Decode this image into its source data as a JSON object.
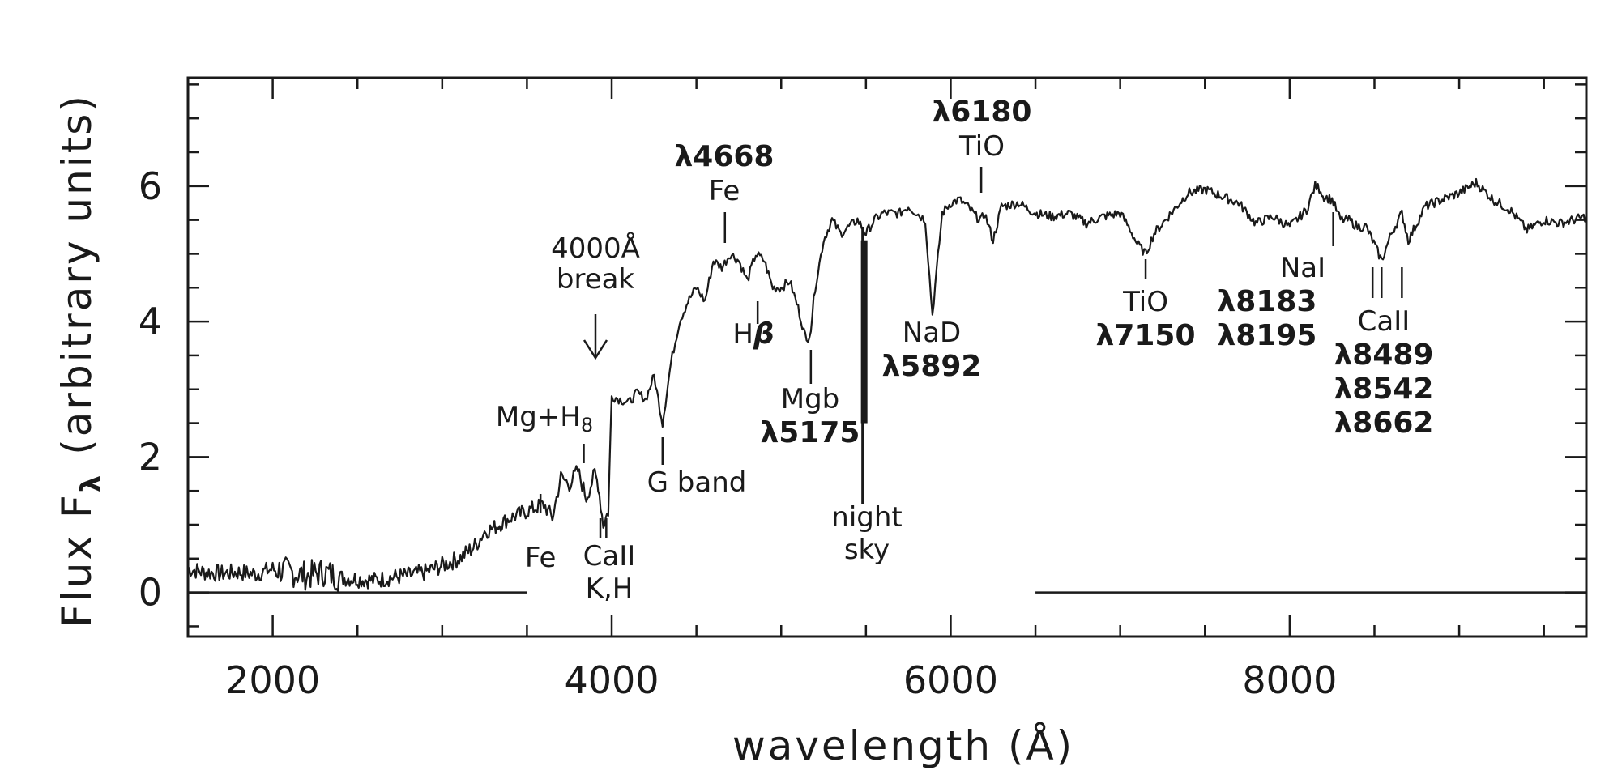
{
  "chart_data": {
    "type": "line",
    "xlabel": "wavelength (Å)",
    "ylabel": "Flux F",
    "ylabel_subscript": "λ",
    "ylabel_units": "(arbitrary units)",
    "xlim": [
      1500,
      9750
    ],
    "ylim": [
      -0.65,
      7.6
    ],
    "xticks": [
      2000,
      4000,
      6000,
      8000
    ],
    "xtick_labels": [
      "2000",
      "4000",
      "6000",
      "8000"
    ],
    "yticks": [
      0,
      2,
      4,
      6
    ],
    "ytick_labels": [
      "0",
      "2",
      "4",
      "6"
    ],
    "x_minor_step": 500,
    "y_minor_step": 0.5,
    "grid": false,
    "zero_line_segments": [
      [
        1500,
        3500
      ],
      [
        6500,
        9750
      ]
    ],
    "series": [
      {
        "x": [
          1500,
          1600,
          1700,
          1800,
          1900,
          2000,
          2100,
          2200,
          2300,
          2400,
          2500,
          2600,
          2700,
          2800,
          2900,
          3000,
          3100,
          3200,
          3250,
          3300,
          3400,
          3500,
          3600,
          3650,
          3700,
          3750,
          3800,
          3850,
          3900,
          3920,
          3950,
          3980,
          4000,
          4050,
          4100,
          4150,
          4200,
          4250,
          4300,
          4350,
          4400,
          4450,
          4500,
          4550,
          4600,
          4650,
          4700,
          4750,
          4800,
          4850,
          4900,
          4950,
          5000,
          5050,
          5100,
          5150,
          5175,
          5200,
          5250,
          5300,
          5350,
          5400,
          5450,
          5500,
          5550,
          5600,
          5650,
          5700,
          5750,
          5800,
          5850,
          5892,
          5950,
          6000,
          6050,
          6100,
          6150,
          6180,
          6200,
          6250,
          6300,
          6400,
          6500,
          6600,
          6700,
          6800,
          6900,
          7000,
          7050,
          7100,
          7150,
          7200,
          7300,
          7400,
          7500,
          7600,
          7700,
          7800,
          7900,
          8000,
          8100,
          8150,
          8183,
          8195,
          8250,
          8300,
          8350,
          8400,
          8450,
          8489,
          8542,
          8600,
          8662,
          8700,
          8800,
          8900,
          9000,
          9100,
          9200,
          9300,
          9400,
          9500,
          9600,
          9750
        ],
        "y": [
          0.35,
          0.3,
          0.28,
          0.3,
          0.27,
          0.35,
          0.3,
          0.25,
          0.3,
          0.22,
          0.2,
          0.18,
          0.22,
          0.25,
          0.3,
          0.4,
          0.5,
          0.7,
          0.9,
          0.95,
          1.1,
          1.2,
          1.3,
          1.1,
          1.7,
          1.6,
          1.8,
          1.4,
          1.75,
          1.6,
          1.0,
          1.2,
          2.9,
          2.85,
          2.8,
          2.95,
          2.85,
          3.2,
          2.5,
          3.4,
          4.0,
          4.3,
          4.5,
          4.3,
          4.9,
          4.8,
          5.0,
          4.9,
          4.6,
          5.0,
          4.9,
          4.5,
          4.5,
          4.6,
          4.2,
          3.7,
          3.9,
          4.5,
          5.2,
          5.5,
          5.3,
          5.4,
          5.5,
          5.3,
          5.5,
          5.6,
          5.6,
          5.6,
          5.7,
          5.6,
          5.5,
          4.1,
          5.6,
          5.75,
          5.8,
          5.7,
          5.55,
          5.5,
          5.6,
          5.2,
          5.7,
          5.75,
          5.6,
          5.55,
          5.6,
          5.45,
          5.55,
          5.6,
          5.4,
          5.15,
          5.0,
          5.3,
          5.6,
          5.9,
          5.95,
          5.85,
          5.75,
          5.45,
          5.55,
          5.4,
          5.65,
          6.0,
          5.95,
          5.85,
          5.8,
          5.5,
          5.5,
          5.4,
          5.4,
          5.2,
          4.9,
          5.3,
          5.6,
          5.2,
          5.7,
          5.8,
          5.9,
          6.05,
          5.8,
          5.65,
          5.35,
          5.5,
          5.45,
          5.55
        ]
      }
    ],
    "sky_line": {
      "x": 5480,
      "y_top": 5.4,
      "y_bottom": 1.3
    },
    "annotations": [
      {
        "id": "break",
        "lines": [
          "4000Å",
          "break"
        ],
        "arrow_x": 3900
      },
      {
        "id": "mg-h8",
        "text": "Mg+H",
        "subscript": "8",
        "x": 3835
      },
      {
        "id": "fe-3580",
        "lines": [
          "Fe"
        ],
        "x": 3580
      },
      {
        "id": "cak-h",
        "lines": [
          "CaII",
          "K,H"
        ],
        "x": [
          3933,
          3968
        ]
      },
      {
        "id": "g-band",
        "lines": [
          "G  band"
        ],
        "x": 4300
      },
      {
        "id": "fe-4668",
        "lines": [
          "λ4668",
          "Fe"
        ],
        "x": 4668
      },
      {
        "id": "hbeta",
        "text": "H",
        "greek": "β",
        "x": 4861
      },
      {
        "id": "mgb",
        "lines": [
          "Mgb",
          "λ5175"
        ],
        "x": 5175
      },
      {
        "id": "night-sky",
        "lines": [
          "night",
          "sky"
        ],
        "x": 5480
      },
      {
        "id": "nad",
        "lines": [
          "NaD",
          "λ5892"
        ],
        "x": 5892
      },
      {
        "id": "tio-6180",
        "lines": [
          "λ6180",
          "TiO"
        ],
        "x": 6180
      },
      {
        "id": "tio-7150",
        "lines": [
          "TiO",
          "λ7150"
        ],
        "x": 7150
      },
      {
        "id": "nai",
        "lines": [
          "NaI",
          "λ8183",
          "λ8195"
        ],
        "x": 8190
      },
      {
        "id": "caii-triplet",
        "lines": [
          "CaII",
          "λ8489",
          "λ8542",
          "λ8662"
        ],
        "x": [
          8489,
          8542,
          8662
        ]
      }
    ]
  },
  "colors": {
    "line": "#1a1a1a",
    "axis": "#1a1a1a",
    "background": "#ffffff"
  }
}
